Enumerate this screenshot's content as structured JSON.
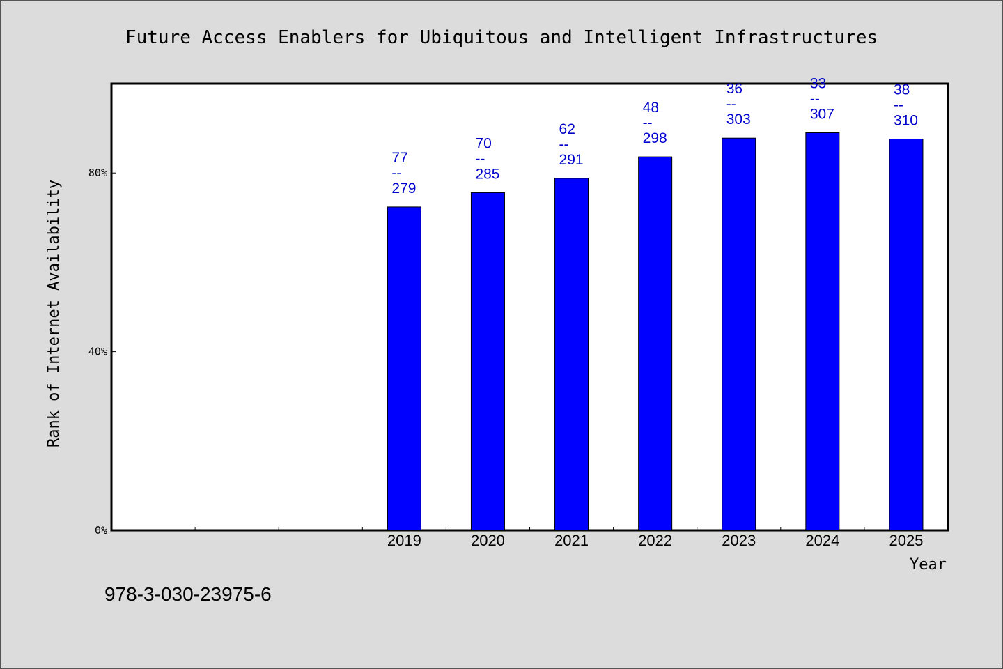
{
  "chart_data": {
    "type": "bar",
    "title": "Future Access Enablers for Ubiquitous and Intelligent Infrastructures",
    "xlabel": "Year",
    "ylabel": "Rank of Internet Availability",
    "categories": [
      "",
      "",
      "",
      "2019",
      "2020",
      "2021",
      "2022",
      "2023",
      "2024",
      "2025"
    ],
    "values": [
      null,
      null,
      null,
      72.4,
      75.6,
      78.8,
      83.6,
      87.8,
      89.0,
      87.6
    ],
    "data_labels": [
      null,
      null,
      null,
      [
        "77",
        "--",
        "279"
      ],
      [
        "70",
        "--",
        "285"
      ],
      [
        "62",
        "--",
        "291"
      ],
      [
        "48",
        "--",
        "298"
      ],
      [
        "36",
        "--",
        "303"
      ],
      [
        "33",
        "--",
        "307"
      ],
      [
        "38",
        "--",
        "310"
      ]
    ],
    "yticks": [
      {
        "value": 0,
        "label": "0%"
      },
      {
        "value": 40,
        "label": "40%"
      },
      {
        "value": 80,
        "label": "80%"
      }
    ],
    "ylim": [
      0,
      100
    ],
    "grid": false,
    "bar_color": "#0000ff",
    "label_color": "#0000cc"
  },
  "footer": {
    "isbn": "978-3-030-23975-6"
  }
}
